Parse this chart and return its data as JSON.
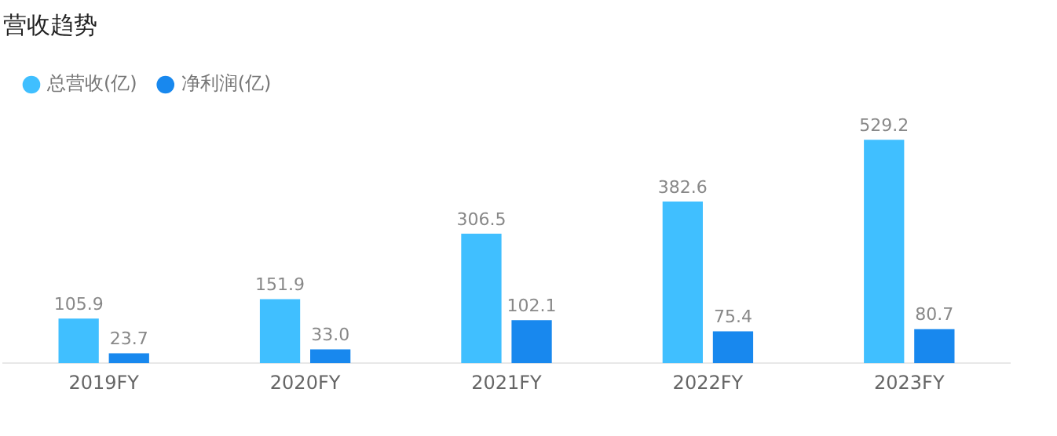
{
  "chart_data": {
    "type": "bar",
    "title": "营收趋势",
    "categories": [
      "2019FY",
      "2020FY",
      "2021FY",
      "2022FY",
      "2023FY"
    ],
    "series": [
      {
        "name": "总营收(亿)",
        "color": "#40bfff",
        "values": [
          105.9,
          151.9,
          306.5,
          382.6,
          529.2
        ]
      },
      {
        "name": "净利润(亿)",
        "color": "#1888ee",
        "values": [
          23.7,
          33.0,
          102.1,
          75.4,
          80.7
        ],
        "value_labels": [
          "23.7",
          "33.0",
          "102.1",
          "75.4",
          "80.7"
        ]
      }
    ],
    "data_labels": true,
    "legend": "top left",
    "grid": false,
    "tick_labels": "x"
  }
}
